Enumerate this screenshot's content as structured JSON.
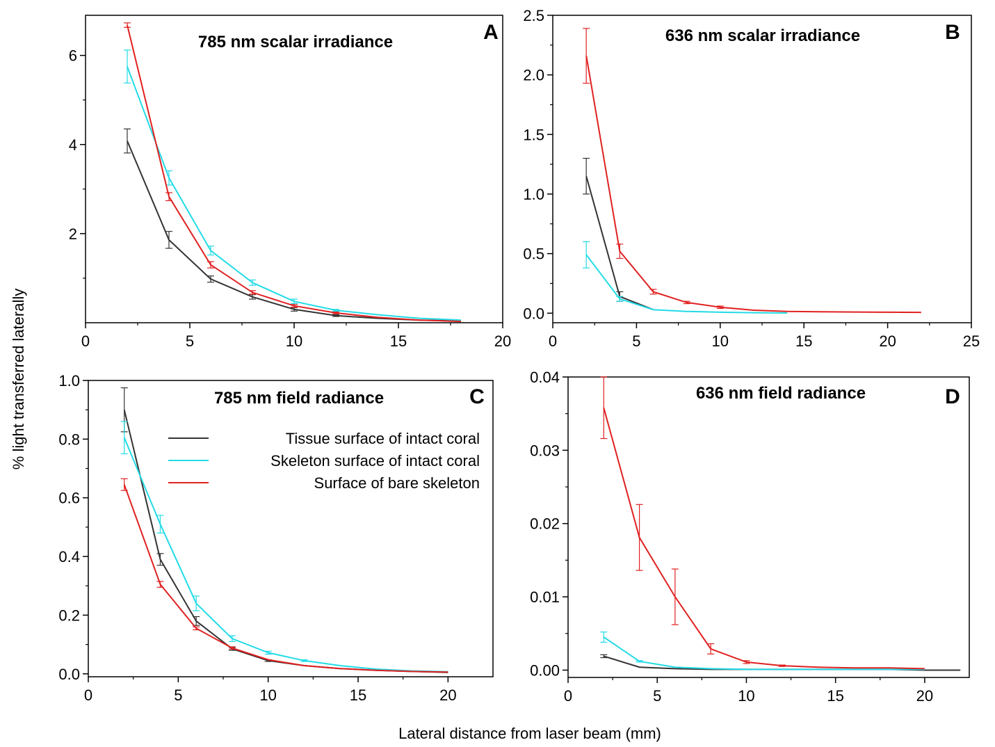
{
  "figure": {
    "ylabel": "% light transferred laterally",
    "xlabel": "Lateral distance from laser beam (mm)"
  },
  "colors": {
    "tissue": "#333333",
    "skeleton_intact": "#22dbe6",
    "bare": "#e02020"
  },
  "legend": [
    {
      "label": "Tissue surface of intact coral",
      "color": "#333333"
    },
    {
      "label": "Skeleton surface of intact coral",
      "color": "#22dbe6"
    },
    {
      "label": "Surface of bare skeleton",
      "color": "#e02020"
    }
  ],
  "chart_data": [
    {
      "type": "line",
      "letter": "A",
      "title": "785 nm scalar irradiance",
      "xlim": [
        0,
        20
      ],
      "ylim": [
        0,
        6.9
      ],
      "xticks": [
        0,
        5,
        10,
        15,
        20
      ],
      "yticks": [
        2,
        4,
        6
      ],
      "series": [
        {
          "name": "Tissue surface of intact coral",
          "color": "#333333",
          "x": [
            2,
            4,
            6,
            8,
            10,
            12,
            14,
            16,
            18
          ],
          "y": [
            4.08,
            1.86,
            0.98,
            0.58,
            0.3,
            0.16,
            0.1,
            0.06,
            0.04
          ],
          "err": [
            0.27,
            0.19,
            0.07,
            0.05,
            0.04,
            0.02,
            0.01,
            0.01,
            0.01
          ]
        },
        {
          "name": "Skeleton surface of intact coral",
          "color": "#22dbe6",
          "x": [
            2,
            4,
            6,
            8,
            10,
            12,
            14,
            16,
            18
          ],
          "y": [
            5.75,
            3.25,
            1.62,
            0.9,
            0.48,
            0.28,
            0.18,
            0.1,
            0.06
          ],
          "err": [
            0.37,
            0.16,
            0.1,
            0.06,
            0.05,
            0.02,
            0.01,
            0.01,
            0.01
          ]
        },
        {
          "name": "Surface of bare skeleton",
          "color": "#e02020",
          "x": [
            2,
            4,
            6,
            8,
            10,
            12,
            14,
            16,
            18
          ],
          "y": [
            6.68,
            2.83,
            1.3,
            0.68,
            0.38,
            0.22,
            0.12,
            0.06,
            0.03
          ],
          "err": [
            0.05,
            0.09,
            0.07,
            0.04,
            0.03,
            0.02,
            0.01,
            0.01,
            0.01
          ]
        }
      ]
    },
    {
      "type": "line",
      "letter": "B",
      "title": "636 nm scalar irradiance",
      "xlim": [
        0,
        25
      ],
      "ylim": [
        -0.08,
        2.5
      ],
      "xticks": [
        0,
        5,
        10,
        15,
        20,
        25
      ],
      "yticks": [
        0.0,
        0.5,
        1.0,
        1.5,
        2.0,
        2.5
      ],
      "yfmt": 1,
      "series": [
        {
          "name": "Tissue surface of intact coral",
          "color": "#333333",
          "x": [
            2,
            4,
            6
          ],
          "y": [
            1.15,
            0.14,
            0.03
          ],
          "err": [
            0.15,
            0.04,
            0.0
          ]
        },
        {
          "name": "Skeleton surface of intact coral",
          "color": "#22dbe6",
          "x": [
            2,
            4,
            6,
            8,
            10,
            12,
            14
          ],
          "y": [
            0.49,
            0.12,
            0.03,
            0.015,
            0.008,
            0.004,
            0.002
          ],
          "err": [
            0.11,
            0.02,
            0.0,
            0.0,
            0.0,
            0.0,
            0.0
          ]
        },
        {
          "name": "Surface of bare skeleton",
          "color": "#e02020",
          "x": [
            2,
            4,
            6,
            8,
            10,
            12,
            14,
            16,
            18,
            20,
            22
          ],
          "y": [
            2.16,
            0.52,
            0.18,
            0.09,
            0.05,
            0.025,
            0.015,
            0.012,
            0.01,
            0.008,
            0.007
          ],
          "err": [
            0.23,
            0.06,
            0.02,
            0.01,
            0.01,
            0.005,
            0.0,
            0.0,
            0.0,
            0.0,
            0.0
          ]
        }
      ]
    },
    {
      "type": "line",
      "letter": "C",
      "title": "785 nm field radiance",
      "xlim": [
        0,
        22.5
      ],
      "ylim": [
        -0.01,
        1.0
      ],
      "xticks": [
        0,
        5,
        10,
        15,
        20
      ],
      "yticks": [
        0.0,
        0.2,
        0.4,
        0.6,
        0.8,
        1.0
      ],
      "yfmt": 1,
      "series": [
        {
          "name": "Tissue surface of intact coral",
          "color": "#333333",
          "x": [
            2,
            4,
            6,
            8,
            10,
            12,
            14,
            16,
            18,
            20
          ],
          "y": [
            0.9,
            0.39,
            0.18,
            0.085,
            0.045,
            0.028,
            0.018,
            0.012,
            0.008,
            0.005
          ],
          "err": [
            0.075,
            0.02,
            0.015,
            0.005,
            0.003,
            0.002,
            0.001,
            0.001,
            0.001,
            0.001
          ]
        },
        {
          "name": "Skeleton surface of intact coral",
          "color": "#22dbe6",
          "x": [
            2,
            4,
            6,
            8,
            10,
            12,
            14,
            16,
            18,
            20
          ],
          "y": [
            0.805,
            0.51,
            0.24,
            0.12,
            0.072,
            0.045,
            0.028,
            0.016,
            0.01,
            0.007
          ],
          "err": [
            0.055,
            0.03,
            0.025,
            0.01,
            0.005,
            0.003,
            0.002,
            0.001,
            0.001,
            0.001
          ]
        },
        {
          "name": "Surface of bare skeleton",
          "color": "#e02020",
          "x": [
            2,
            4,
            6,
            8,
            10,
            12,
            14,
            16,
            18,
            20
          ],
          "y": [
            0.645,
            0.305,
            0.155,
            0.088,
            0.048,
            0.028,
            0.018,
            0.012,
            0.008,
            0.006
          ],
          "err": [
            0.02,
            0.01,
            0.005,
            0.004,
            0.002,
            0.002,
            0.001,
            0.001,
            0.001,
            0.001
          ]
        }
      ]
    },
    {
      "type": "line",
      "letter": "D",
      "title": "636 nm field radiance",
      "xlim": [
        0,
        22.5
      ],
      "ylim": [
        -0.001,
        0.04
      ],
      "xticks": [
        0,
        5,
        10,
        15,
        20
      ],
      "yticks": [
        0.0,
        0.01,
        0.02,
        0.03,
        0.04
      ],
      "yfmt": 2,
      "series": [
        {
          "name": "Tissue surface of intact coral",
          "color": "#333333",
          "x": [
            2,
            4,
            6,
            8,
            10,
            12,
            14,
            16,
            18,
            20,
            22
          ],
          "y": [
            0.0019,
            0.0004,
            0.0002,
            0.0001,
            0.0001,
            0.0001,
            0.0001,
            0.0001,
            0.0001,
            0.0,
            0.0
          ],
          "err": [
            0.0002,
            0.0,
            0.0,
            0.0,
            0.0,
            0.0,
            0.0,
            0.0,
            0.0,
            0.0,
            0.0
          ]
        },
        {
          "name": "Skeleton surface of intact coral",
          "color": "#22dbe6",
          "x": [
            2,
            4,
            6,
            8,
            10,
            12,
            14,
            16,
            18,
            20
          ],
          "y": [
            0.0045,
            0.0012,
            0.0004,
            0.0002,
            0.0001,
            0.0001,
            0.0001,
            0.0001,
            0.0001,
            0.0001
          ],
          "err": [
            0.0007,
            0.0001,
            0.0,
            0.0,
            0.0,
            0.0,
            0.0,
            0.0,
            0.0,
            0.0
          ]
        },
        {
          "name": "Surface of bare skeleton",
          "color": "#e02020",
          "x": [
            2,
            4,
            6,
            8,
            10,
            12,
            14,
            16,
            18,
            20
          ],
          "y": [
            0.0358,
            0.0181,
            0.01,
            0.0029,
            0.0011,
            0.0006,
            0.0004,
            0.0003,
            0.0003,
            0.0002
          ],
          "err": [
            0.0042,
            0.0045,
            0.0038,
            0.0007,
            0.0002,
            0.0001,
            0.0,
            0.0,
            0.0,
            0.0
          ]
        }
      ]
    }
  ]
}
